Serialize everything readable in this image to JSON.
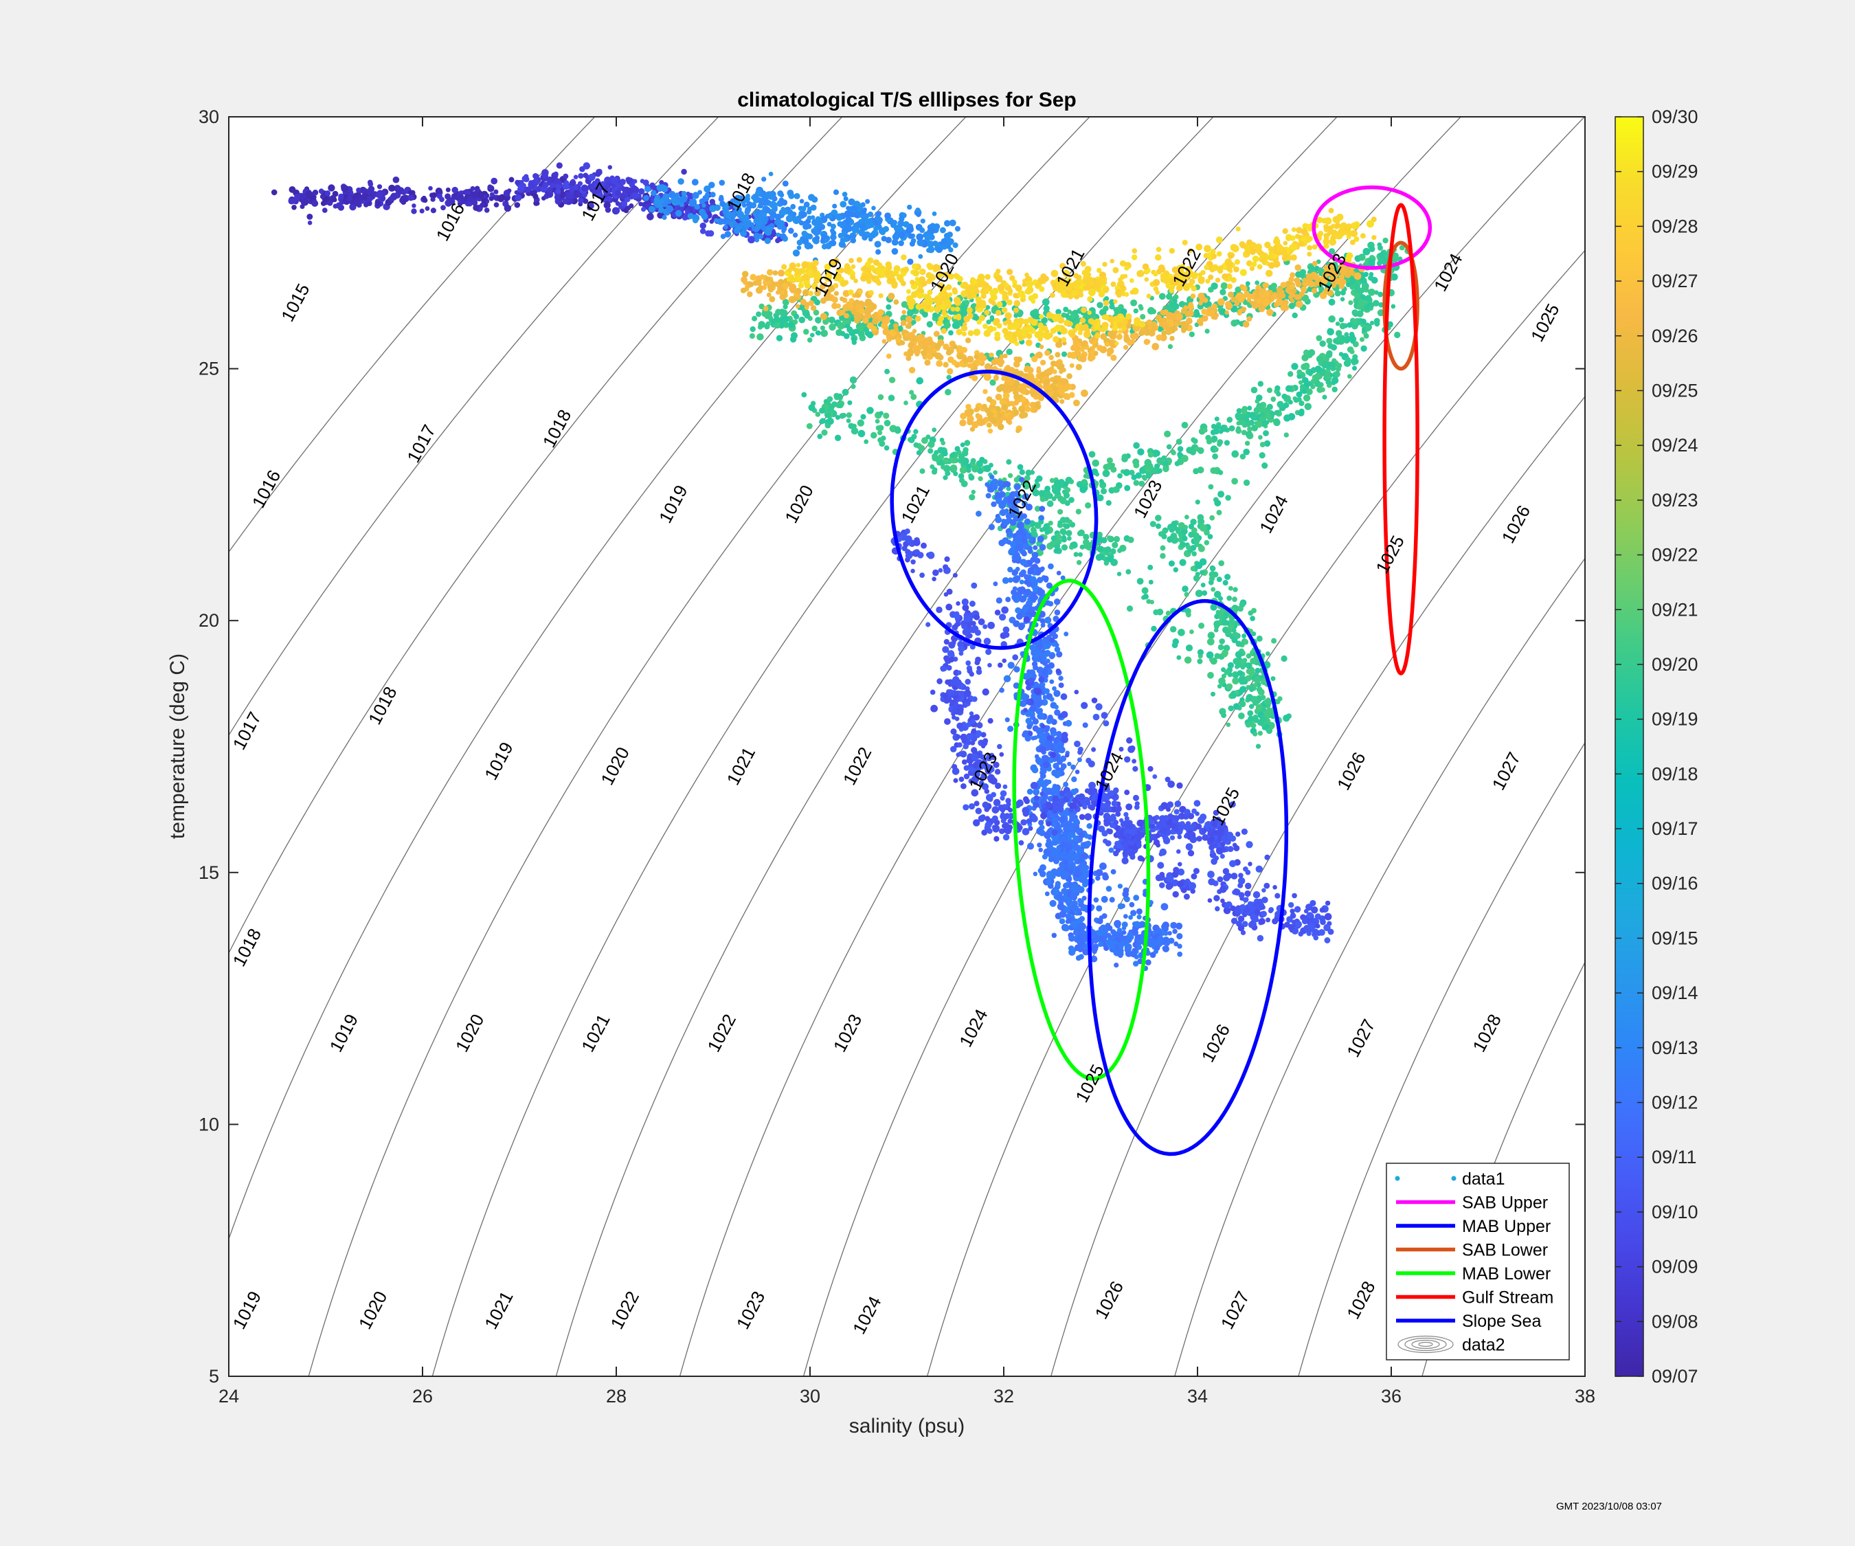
{
  "chart_data": {
    "type": "scatter",
    "title": "climatological T/S elllipses for Sep",
    "xlabel": "salinity (psu)",
    "ylabel": "temperature (deg C)",
    "xlim": [
      24,
      38
    ],
    "ylim": [
      5,
      30
    ],
    "xticks": [
      "24",
      "26",
      "28",
      "30",
      "32",
      "34",
      "36",
      "38"
    ],
    "yticks": [
      "5",
      "10",
      "15",
      "20",
      "25",
      "30"
    ],
    "grid": false,
    "legend_position": "bottom-right",
    "colorbar": {
      "labels": [
        "09/07",
        "09/08",
        "09/09",
        "09/10",
        "09/11",
        "09/12",
        "09/13",
        "09/14",
        "09/15",
        "09/16",
        "09/17",
        "09/18",
        "09/19",
        "09/20",
        "09/21",
        "09/22",
        "09/23",
        "09/24",
        "09/25",
        "09/26",
        "09/27",
        "09/28",
        "09/29",
        "09/30"
      ],
      "colors": [
        "#3e26a8",
        "#4435cd",
        "#4748e8",
        "#465cf6",
        "#3e72fd",
        "#2e87f7",
        "#2898eb",
        "#1ea9de",
        "#0db5d0",
        "#0abfbb",
        "#20c6a3",
        "#40cb88",
        "#6ccd6c",
        "#96cb53",
        "#bcc43f",
        "#ddbc3c",
        "#f7b945",
        "#fdca38",
        "#f8dc2b",
        "#f9fb14"
      ]
    },
    "density_contours": [
      {
        "sigma": 1015,
        "labels": [
          [
            24.7,
            26.3
          ]
        ]
      },
      {
        "sigma": 1016,
        "labels": [
          [
            26.3,
            27.9
          ],
          [
            24.4,
            22.6
          ]
        ]
      },
      {
        "sigma": 1017,
        "labels": [
          [
            27.8,
            28.3
          ],
          [
            26.0,
            23.5
          ],
          [
            24.2,
            17.8
          ]
        ]
      },
      {
        "sigma": 1018,
        "labels": [
          [
            29.3,
            28.5
          ],
          [
            27.4,
            23.8
          ],
          [
            25.6,
            18.3
          ],
          [
            24.2,
            13.5
          ]
        ]
      },
      {
        "sigma": 1019,
        "labels": [
          [
            30.2,
            26.8
          ],
          [
            28.6,
            22.3
          ],
          [
            26.8,
            17.2
          ],
          [
            25.2,
            11.8
          ],
          [
            24.2,
            6.3
          ]
        ]
      },
      {
        "sigma": 1020,
        "labels": [
          [
            31.4,
            26.9
          ],
          [
            29.9,
            22.3
          ],
          [
            28.0,
            17.1
          ],
          [
            26.5,
            11.8
          ],
          [
            25.5,
            6.3
          ]
        ]
      },
      {
        "sigma": 1021,
        "labels": [
          [
            32.7,
            27.0
          ],
          [
            31.1,
            22.3
          ],
          [
            29.3,
            17.1
          ],
          [
            27.8,
            11.8
          ],
          [
            26.8,
            6.3
          ]
        ]
      },
      {
        "sigma": 1022,
        "labels": [
          [
            33.9,
            27.0
          ],
          [
            32.2,
            22.4
          ],
          [
            30.5,
            17.1
          ],
          [
            29.1,
            11.8
          ],
          [
            28.1,
            6.3
          ]
        ]
      },
      {
        "sigma": 1023,
        "labels": [
          [
            35.4,
            26.9
          ],
          [
            33.5,
            22.4
          ],
          [
            31.8,
            17.0
          ],
          [
            30.4,
            11.8
          ],
          [
            29.4,
            6.3
          ]
        ]
      },
      {
        "sigma": 1024,
        "labels": [
          [
            36.6,
            26.9
          ],
          [
            34.8,
            22.1
          ],
          [
            33.1,
            17.0
          ],
          [
            31.7,
            11.9
          ],
          [
            30.6,
            6.2
          ]
        ]
      },
      {
        "sigma": 1025,
        "labels": [
          [
            37.6,
            25.9
          ],
          [
            36.0,
            21.3
          ],
          [
            34.3,
            16.3
          ],
          [
            32.9,
            10.8
          ]
        ]
      },
      {
        "sigma": 1026,
        "labels": [
          [
            37.3,
            21.9
          ],
          [
            35.6,
            17.0
          ],
          [
            34.2,
            11.6
          ],
          [
            33.1,
            6.5
          ]
        ]
      },
      {
        "sigma": 1027,
        "labels": [
          [
            37.2,
            17.0
          ],
          [
            35.7,
            11.7
          ],
          [
            34.4,
            6.3
          ]
        ]
      },
      {
        "sigma": 1028,
        "labels": [
          [
            37.0,
            11.8
          ],
          [
            35.7,
            6.5
          ]
        ]
      }
    ],
    "ellipses": [
      {
        "name": "SAB Upper",
        "color": "#ff00ff",
        "center": [
          35.8,
          27.8
        ],
        "rx": 0.6,
        "ry": 0.8,
        "rot": 0
      },
      {
        "name": "MAB Upper",
        "color": "#0000ff",
        "center": [
          31.9,
          22.2
        ],
        "rx": 1.05,
        "ry": 2.75,
        "rot": -6
      },
      {
        "name": "SAB Lower",
        "color": "#d95319",
        "center": [
          36.1,
          26.25
        ],
        "rx": 0.17,
        "ry": 1.25,
        "rot": 0
      },
      {
        "name": "MAB Lower",
        "color": "#00ff00",
        "center": [
          32.8,
          15.85
        ],
        "rx": 0.68,
        "ry": 4.95,
        "rot": -3
      },
      {
        "name": "Gulf Stream",
        "color": "#ff0000",
        "center": [
          36.1,
          23.6
        ],
        "rx": 0.17,
        "ry": 4.65,
        "rot": 0
      },
      {
        "name": "Slope Sea",
        "color": "#0000ff",
        "center": [
          33.9,
          14.9
        ],
        "rx": 1.0,
        "ry": 5.5,
        "rot": 4
      }
    ],
    "scatter_clusters": [
      {
        "date": "09/08",
        "t": 0.03,
        "pts": [
          [
            24.8,
            28.4
          ],
          [
            25.5,
            28.4
          ],
          [
            26.5,
            28.4
          ],
          [
            27.5,
            28.5
          ],
          [
            28.5,
            28.2
          ]
        ],
        "spread": [
          0.25,
          0.25
        ]
      },
      {
        "date": "09/09",
        "t": 0.08,
        "pts": [
          [
            27.2,
            28.7
          ],
          [
            28.0,
            28.6
          ],
          [
            28.8,
            28.2
          ],
          [
            29.5,
            27.8
          ]
        ],
        "spread": [
          0.35,
          0.3
        ]
      },
      {
        "date": "09/13",
        "t": 0.28,
        "pts": [
          [
            28.5,
            28.4
          ],
          [
            29.5,
            28.3
          ],
          [
            30.5,
            28.0
          ],
          [
            31.3,
            27.6
          ],
          [
            29.3,
            27.9
          ],
          [
            30.2,
            27.6
          ]
        ],
        "spread": [
          0.35,
          0.35
        ]
      },
      {
        "date": "09/19",
        "t": 0.56,
        "pts": [
          [
            29.6,
            26.0
          ],
          [
            30.5,
            25.9
          ],
          [
            31.5,
            26.1
          ],
          [
            32.8,
            26.0
          ],
          [
            33.8,
            26.1
          ],
          [
            34.8,
            26.4
          ],
          [
            35.5,
            26.8
          ],
          [
            35.9,
            27.2
          ],
          [
            30.2,
            24.2
          ],
          [
            31.5,
            23.2
          ],
          [
            32.5,
            22.5
          ],
          [
            33.5,
            23.1
          ],
          [
            34.6,
            24.0
          ],
          [
            35.3,
            25.0
          ],
          [
            35.8,
            26.2
          ],
          [
            33.8,
            21.8
          ],
          [
            34.3,
            20.2
          ],
          [
            34.5,
            19.0
          ],
          [
            34.7,
            18.0
          ],
          [
            33.0,
            21.5
          ],
          [
            32.2,
            21.8
          ]
        ],
        "spread": [
          0.3,
          0.4
        ]
      },
      {
        "date": "09/26",
        "t": 0.84,
        "pts": [
          [
            29.5,
            26.7
          ],
          [
            30.5,
            26.2
          ],
          [
            31.2,
            25.4
          ],
          [
            32.0,
            24.9
          ],
          [
            32.5,
            24.6
          ],
          [
            31.8,
            24.0
          ],
          [
            32.8,
            25.4
          ],
          [
            33.7,
            25.9
          ],
          [
            34.7,
            26.4
          ],
          [
            35.5,
            26.9
          ]
        ],
        "spread": [
          0.3,
          0.3
        ]
      },
      {
        "date": "09/28",
        "t": 0.93,
        "pts": [
          [
            29.9,
            26.9
          ],
          [
            30.8,
            26.9
          ],
          [
            31.8,
            26.6
          ],
          [
            32.8,
            26.6
          ],
          [
            33.8,
            26.8
          ],
          [
            34.8,
            27.3
          ],
          [
            35.5,
            27.8
          ],
          [
            31.2,
            26.3
          ],
          [
            32.2,
            25.7
          ],
          [
            33.2,
            25.9
          ]
        ],
        "spread": [
          0.35,
          0.3
        ]
      },
      {
        "date": "09/12",
        "t": 0.22,
        "pts": [
          [
            32.0,
            22.5
          ],
          [
            32.2,
            21.5
          ],
          [
            32.3,
            20.5
          ],
          [
            32.4,
            19.5
          ],
          [
            32.3,
            18.5
          ],
          [
            32.5,
            17.5
          ],
          [
            32.5,
            16.5
          ],
          [
            32.6,
            15.5
          ],
          [
            32.7,
            14.5
          ],
          [
            32.8,
            13.7
          ],
          [
            33.2,
            13.6
          ],
          [
            33.6,
            13.7
          ],
          [
            32.6,
            16.0
          ],
          [
            32.7,
            15.0
          ]
        ],
        "spread": [
          0.25,
          0.4
        ]
      },
      {
        "date": "09/10",
        "t": 0.14,
        "pts": [
          [
            31.6,
            20.0
          ],
          [
            31.5,
            18.5
          ],
          [
            31.7,
            17.2
          ],
          [
            32.0,
            16.0
          ],
          [
            33.0,
            16.5
          ],
          [
            33.3,
            15.6
          ],
          [
            33.7,
            16.0
          ],
          [
            34.2,
            15.8
          ],
          [
            34.5,
            14.2
          ],
          [
            35.2,
            14.0
          ],
          [
            31.0,
            21.5
          ],
          [
            33.8,
            14.8
          ]
        ],
        "spread": [
          0.25,
          0.4
        ]
      }
    ],
    "legend": [
      {
        "label": "data1",
        "kind": "marker",
        "color": "#1ea9de"
      },
      {
        "label": "SAB Upper",
        "kind": "line",
        "color": "#ff00ff"
      },
      {
        "label": "MAB Upper",
        "kind": "line",
        "color": "#0000ff"
      },
      {
        "label": "SAB Lower",
        "kind": "line",
        "color": "#d95319"
      },
      {
        "label": "MAB Lower",
        "kind": "line",
        "color": "#00ff00"
      },
      {
        "label": "Gulf Stream",
        "kind": "line",
        "color": "#ff0000"
      },
      {
        "label": "Slope Sea",
        "kind": "line",
        "color": "#0000ff"
      },
      {
        "label": "data2",
        "kind": "contour",
        "color": "#888888"
      }
    ]
  },
  "timestamp": "GMT  2023/10/08 03:07"
}
